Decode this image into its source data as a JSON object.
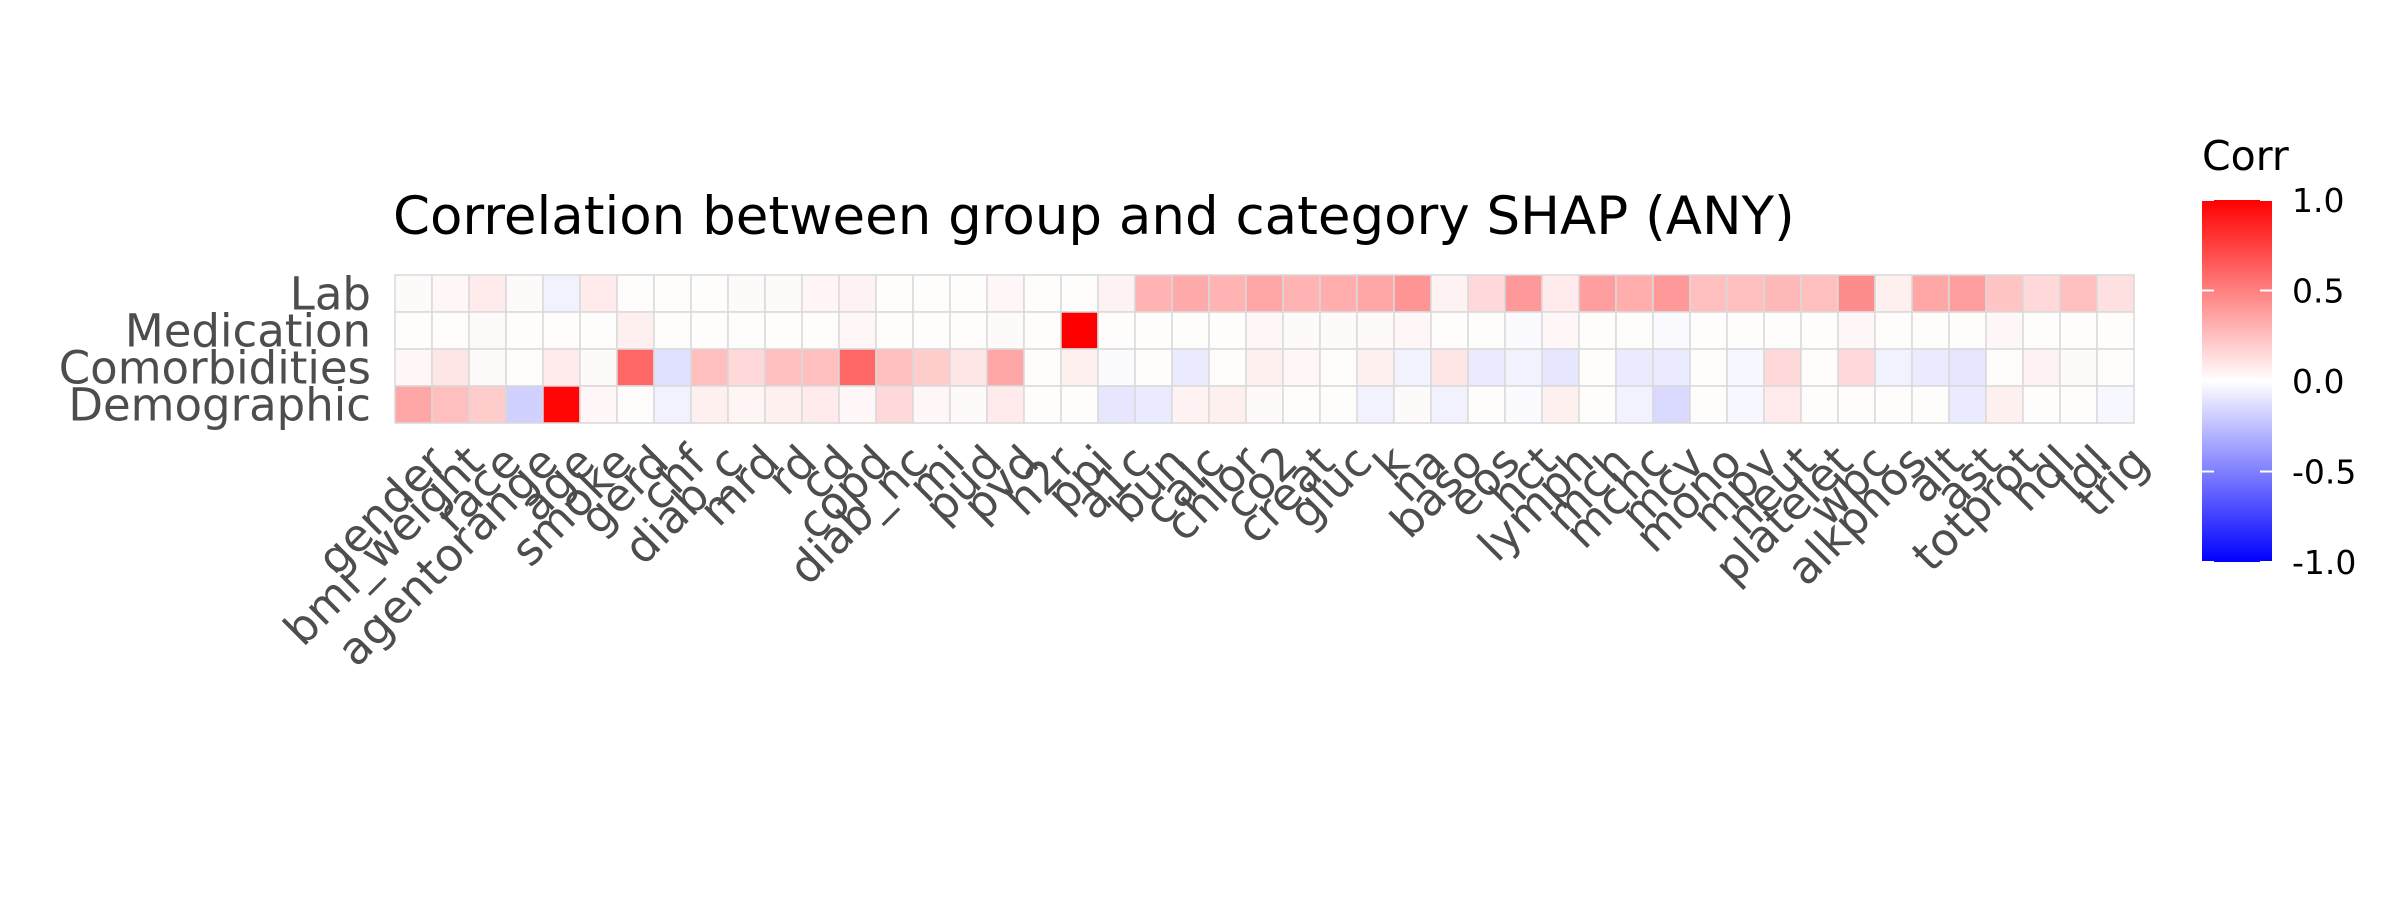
{
  "chart_data": {
    "type": "heatmap",
    "title": "Correlation between group and category SHAP (ANY)",
    "x": [
      "gender",
      "bmi_weight",
      "race",
      "agentorange",
      "age",
      "smoke",
      "gerd",
      "chf",
      "diab_c",
      "mrd",
      "rd",
      "cd",
      "copd",
      "diab_nc",
      "mi",
      "pud",
      "pvd",
      "h2r",
      "ppi",
      "a1c",
      "bun",
      "calc",
      "chlor",
      "co2",
      "creat",
      "gluc",
      "k",
      "na",
      "baso",
      "eos",
      "hct",
      "lymph",
      "mch",
      "mchc",
      "mcv",
      "mono",
      "mpv",
      "neut",
      "platelet",
      "wbc",
      "alkphos",
      "alt",
      "ast",
      "totprot",
      "hdl",
      "ldl",
      "trig"
    ],
    "y": [
      "Lab",
      "Medication",
      "Comorbidities",
      "Demographic"
    ],
    "values": [
      [
        0.02,
        0.03,
        0.08,
        0.02,
        -0.05,
        0.08,
        0.01,
        0.01,
        0.01,
        0.02,
        0.02,
        0.04,
        0.05,
        0.01,
        0.01,
        0.01,
        0.03,
        0.01,
        0.01,
        0.05,
        0.3,
        0.33,
        0.3,
        0.35,
        0.3,
        0.32,
        0.35,
        0.42,
        0.05,
        0.15,
        0.4,
        0.08,
        0.38,
        0.32,
        0.4,
        0.25,
        0.25,
        0.28,
        0.25,
        0.45,
        0.06,
        0.35,
        0.38,
        0.23,
        0.15,
        0.25,
        0.12
      ],
      [
        0.01,
        0.01,
        0.02,
        0.01,
        0.01,
        0.01,
        0.06,
        0.01,
        0.01,
        0.01,
        0.01,
        0.01,
        0.03,
        0.01,
        0.01,
        0.01,
        0.02,
        0.01,
        1.0,
        0.01,
        0.01,
        0.01,
        0.01,
        0.03,
        0.02,
        0.02,
        0.02,
        0.03,
        0.01,
        0.01,
        -0.02,
        0.03,
        0.01,
        0.01,
        -0.02,
        0.01,
        0.01,
        0.01,
        0.01,
        0.03,
        0.01,
        0.01,
        0.01,
        0.03,
        0.01,
        0.01,
        0.01
      ],
      [
        0.03,
        0.1,
        0.02,
        0.01,
        0.08,
        0.02,
        0.6,
        -0.12,
        0.25,
        0.15,
        0.25,
        0.25,
        0.6,
        0.25,
        0.2,
        0.1,
        0.35,
        0.01,
        0.06,
        -0.02,
        0.01,
        -0.08,
        0.01,
        0.06,
        0.03,
        0.01,
        0.06,
        -0.05,
        0.1,
        -0.08,
        -0.05,
        -0.1,
        0.01,
        -0.08,
        -0.08,
        0.01,
        -0.03,
        0.15,
        0.01,
        0.15,
        -0.05,
        -0.08,
        -0.1,
        0.01,
        0.05,
        0.02,
        0.01
      ],
      [
        0.35,
        0.25,
        0.2,
        -0.18,
        0.98,
        0.03,
        0.01,
        -0.05,
        0.06,
        0.04,
        0.06,
        0.08,
        0.03,
        0.15,
        0.03,
        0.02,
        0.08,
        0.01,
        0.01,
        -0.1,
        -0.08,
        0.05,
        0.06,
        0.02,
        0.01,
        0.01,
        -0.05,
        0.02,
        -0.05,
        0.01,
        -0.02,
        0.06,
        0.01,
        -0.05,
        -0.15,
        0.01,
        -0.03,
        0.08,
        0.01,
        0.01,
        0.01,
        0.01,
        -0.08,
        0.06,
        0.01,
        0.01,
        -0.03
      ]
    ],
    "color_scale": {
      "low": "#0000ff",
      "mid": "#ffffff",
      "high": "#ff0000"
    },
    "legend": {
      "title": "Corr",
      "ticks": [
        "1.0",
        "0.5",
        "0.0",
        "-0.5",
        "-1.0"
      ],
      "position": "right"
    },
    "range": [
      -1,
      1
    ],
    "grid": true
  }
}
